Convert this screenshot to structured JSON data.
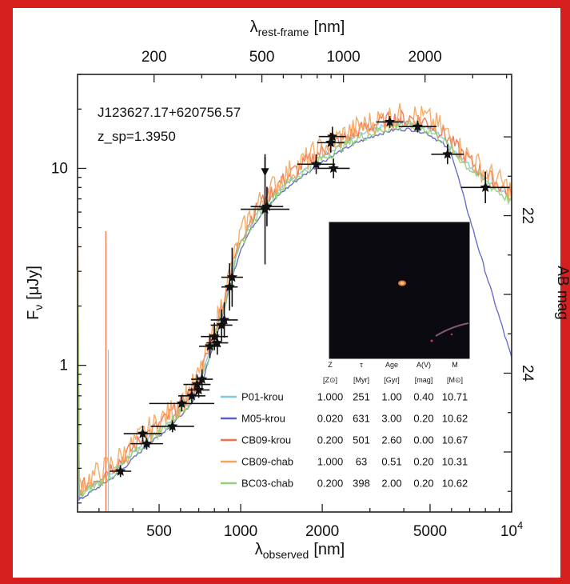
{
  "chart_data": {
    "type": "scatter",
    "title_lines": [
      "J123627.17+620756.57",
      "z_sp=1.3950"
    ],
    "xlabel_bottom": {
      "main": "λ",
      "sub": "observed",
      "unit": "[nm]"
    },
    "xlabel_top": {
      "main": "λ",
      "sub": "rest-frame",
      "unit": "[nm]"
    },
    "ylabel_left": {
      "main": "F",
      "sub": "ν",
      "unit": "[μJy]"
    },
    "ylabel_right": "AB mag",
    "x_scale": "log",
    "y_scale": "log",
    "xlim": [
      250,
      10000
    ],
    "ylim": [
      0.18,
      30
    ],
    "x_ticks_bottom": [
      {
        "value": 500,
        "label": "500"
      },
      {
        "value": 1000,
        "label": "1000"
      },
      {
        "value": 2000,
        "label": "2000"
      },
      {
        "value": 5000,
        "label": "5000"
      },
      {
        "value": 10000,
        "label": "10",
        "sup": "4"
      }
    ],
    "x_ticks_top": [
      {
        "value": 200,
        "label": "200"
      },
      {
        "value": 500,
        "label": "500"
      },
      {
        "value": 1000,
        "label": "1000"
      },
      {
        "value": 2000,
        "label": "2000"
      }
    ],
    "y_ticks_left": [
      {
        "value": 1,
        "label": "1"
      },
      {
        "value": 10,
        "label": "10"
      }
    ],
    "y_ticks_right": [
      {
        "value": 22,
        "label": "22"
      },
      {
        "value": 24,
        "label": "24"
      }
    ],
    "redshift": 1.395,
    "photometry": [
      {
        "wl": 360,
        "f": 0.29,
        "xerr": 0.04,
        "yerr": 0.03
      },
      {
        "wl": 435,
        "f": 0.45,
        "xerr": 0.07,
        "yerr": 0.04
      },
      {
        "wl": 450,
        "f": 0.4,
        "xerr": 0.06,
        "yerr": 0.03
      },
      {
        "wl": 560,
        "f": 0.49,
        "xerr": 0.08,
        "yerr": 0.03
      },
      {
        "wl": 606,
        "f": 0.64,
        "xerr": 0.12,
        "yerr": 0.04
      },
      {
        "wl": 660,
        "f": 0.7,
        "xerr": 0.05,
        "yerr": 0.04
      },
      {
        "wl": 690,
        "f": 0.8,
        "xerr": 0.05,
        "yerr": 0.05
      },
      {
        "wl": 700,
        "f": 0.75,
        "xerr": 0.04,
        "yerr": 0.04
      },
      {
        "wl": 720,
        "f": 0.85,
        "xerr": 0.04,
        "yerr": 0.05
      },
      {
        "wl": 770,
        "f": 1.25,
        "xerr": 0.04,
        "yerr": 0.06
      },
      {
        "wl": 800,
        "f": 1.4,
        "xerr": 0.05,
        "yerr": 0.07
      },
      {
        "wl": 820,
        "f": 1.3,
        "xerr": 0.04,
        "yerr": 0.06
      },
      {
        "wl": 850,
        "f": 1.6,
        "xerr": 0.04,
        "yerr": 0.08
      },
      {
        "wl": 870,
        "f": 1.7,
        "xerr": 0.05,
        "yerr": 0.09
      },
      {
        "wl": 910,
        "f": 2.5,
        "xerr": 0.03,
        "yerr": 0.12
      },
      {
        "wl": 930,
        "f": 2.8,
        "xerr": 0.04,
        "yerr": 0.15
      },
      {
        "wl": 1230,
        "f": 6.2,
        "xerr": 0.09,
        "yerr": 0.28
      },
      {
        "wl": 1250,
        "f": 6.4,
        "xerr": 0.06,
        "yerr": 0.1
      },
      {
        "wl": 1900,
        "f": 10.5,
        "xerr": 0.07,
        "yerr": 0.05
      },
      {
        "wl": 2150,
        "f": 13.5,
        "xerr": 0.05,
        "yerr": 0.05
      },
      {
        "wl": 2180,
        "f": 14.5,
        "xerr": 0.05,
        "yerr": 0.05
      },
      {
        "wl": 2200,
        "f": 10.0,
        "xerr": 0.06,
        "yerr": 0.05
      },
      {
        "wl": 3550,
        "f": 17.2,
        "xerr": 0.05,
        "yerr": 0.03
      },
      {
        "wl": 4500,
        "f": 16.3,
        "xerr": 0.07,
        "yerr": 0.03
      },
      {
        "wl": 5800,
        "f": 11.8,
        "xerr": 0.06,
        "yerr": 0.05
      },
      {
        "wl": 8000,
        "f": 8.0,
        "xerr": 0.09,
        "yerr": 0.08
      }
    ],
    "upper_limits": [
      {
        "wl": 1230,
        "f": 9.3
      }
    ],
    "models": [
      {
        "name": "P01-krou",
        "color": "#7fc8e8",
        "Z": "1.000",
        "tau": "251",
        "age": "1.00",
        "AV": "0.40",
        "M": "10.71"
      },
      {
        "name": "M05-krou",
        "color": "#5a5fc4",
        "Z": "0.020",
        "tau": "631",
        "age": "3.00",
        "AV": "0.20",
        "M": "10.62"
      },
      {
        "name": "CB09-krou",
        "color": "#f0704a",
        "Z": "0.200",
        "tau": "501",
        "age": "2.60",
        "AV": "0.00",
        "M": "10.67"
      },
      {
        "name": "CB09-chab",
        "color": "#f5a45a",
        "Z": "1.000",
        "tau": "63",
        "age": "0.51",
        "AV": "0.20",
        "M": "10.31"
      },
      {
        "name": "BC03-chab",
        "color": "#8fd07a",
        "Z": "0.200",
        "tau": "398",
        "age": "2.00",
        "AV": "0.20",
        "M": "10.62"
      }
    ],
    "model_curve": [
      [
        250,
        0.22
      ],
      [
        300,
        0.26
      ],
      [
        350,
        0.3
      ],
      [
        400,
        0.36
      ],
      [
        450,
        0.42
      ],
      [
        500,
        0.47
      ],
      [
        550,
        0.53
      ],
      [
        600,
        0.6
      ],
      [
        650,
        0.68
      ],
      [
        700,
        0.8
      ],
      [
        750,
        1.05
      ],
      [
        800,
        1.4
      ],
      [
        850,
        1.85
      ],
      [
        900,
        2.5
      ],
      [
        950,
        3.3
      ],
      [
        1000,
        4.2
      ],
      [
        1100,
        5.4
      ],
      [
        1200,
        6.4
      ],
      [
        1400,
        8.0
      ],
      [
        1600,
        9.3
      ],
      [
        1800,
        10.4
      ],
      [
        2000,
        11.6
      ],
      [
        2300,
        13.0
      ],
      [
        2700,
        14.6
      ],
      [
        3200,
        16.0
      ],
      [
        3700,
        16.9
      ],
      [
        4200,
        17.0
      ],
      [
        4800,
        16.4
      ],
      [
        5500,
        14.6
      ],
      [
        6200,
        12.2
      ],
      [
        7000,
        10.3
      ],
      [
        8000,
        8.8
      ],
      [
        9000,
        7.8
      ],
      [
        10000,
        7.0
      ]
    ],
    "table_headers": [
      {
        "top": "Z",
        "bottom": "[Z⊙]"
      },
      {
        "top": "τ",
        "bottom": "[Myr]"
      },
      {
        "top": "Age",
        "bottom": "[Gyr]"
      },
      {
        "top": "A(V)",
        "bottom": "[mag]"
      },
      {
        "top": "M",
        "bottom": "[M⊙]"
      }
    ],
    "grid": false,
    "legend_position": "bottom-right"
  }
}
